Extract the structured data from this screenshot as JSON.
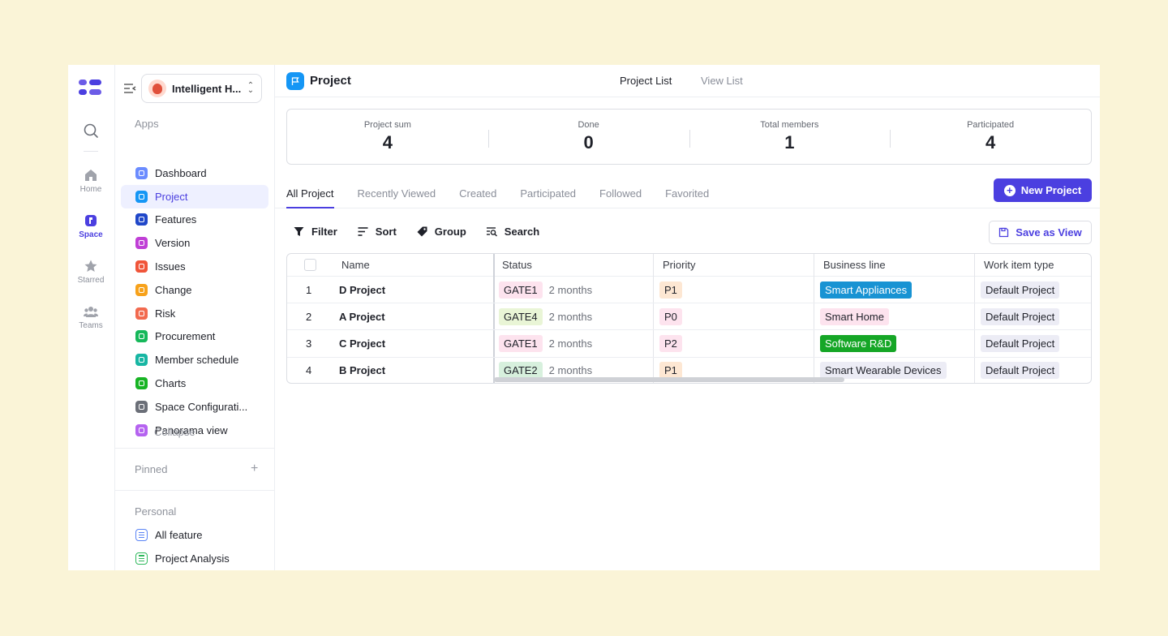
{
  "rail": {
    "items": [
      {
        "label": "Home",
        "icon": "home-icon"
      },
      {
        "label": "Space",
        "icon": "space-icon",
        "active": true
      },
      {
        "label": "Starred",
        "icon": "star-icon"
      },
      {
        "label": "Teams",
        "icon": "teams-icon"
      }
    ]
  },
  "sidebar": {
    "workspace": "Intelligent H...",
    "apps_label": "Apps",
    "apps": [
      {
        "label": "Dashboard",
        "color": "#6b8cff"
      },
      {
        "label": "Project",
        "color": "#1596f5",
        "active": true
      },
      {
        "label": "Features",
        "color": "#2047c9"
      },
      {
        "label": "Version",
        "color": "#c03fd6"
      },
      {
        "label": "Issues",
        "color": "#f0553a"
      },
      {
        "label": "Change",
        "color": "#f7a21b"
      },
      {
        "label": "Risk",
        "color": "#f26a4f"
      },
      {
        "label": "Procurement",
        "color": "#16b85a"
      },
      {
        "label": "Member schedule",
        "color": "#17b6a3"
      },
      {
        "label": "Charts",
        "color": "#18b424"
      },
      {
        "label": "Space Configurati...",
        "color": "#6b6f78"
      },
      {
        "label": "Panorama view",
        "color": "#b563f0"
      }
    ],
    "collapse": "Collapse",
    "pinned_label": "Pinned",
    "pinned_add": "+",
    "personal_label": "Personal",
    "personal": [
      {
        "label": "All feature",
        "color": "#5a84f5"
      },
      {
        "label": "Project Analysis",
        "color": "#2fb85c"
      }
    ]
  },
  "header": {
    "title": "Project",
    "tabs": [
      "Project List",
      "View List"
    ]
  },
  "stats": [
    {
      "label": "Project sum",
      "value": "4"
    },
    {
      "label": "Done",
      "value": "0"
    },
    {
      "label": "Total members",
      "value": "1"
    },
    {
      "label": "Participated",
      "value": "4"
    }
  ],
  "tabs": [
    "All Project",
    "Recently Viewed",
    "Created",
    "Participated",
    "Followed",
    "Favorited"
  ],
  "new_project": "New Project",
  "toolbar": {
    "filter": "Filter",
    "sort": "Sort",
    "group": "Group",
    "search": "Search",
    "save_view": "Save as View"
  },
  "table": {
    "columns": [
      "Name",
      "Status",
      "Priority",
      "Business line",
      "Work item type"
    ],
    "rows": [
      {
        "num": "1",
        "name": "D Project",
        "status": "GATE1",
        "duration": "2 months",
        "priority": "P1",
        "business": "Smart Appliances",
        "type": "Default Project"
      },
      {
        "num": "2",
        "name": "A Project",
        "status": "GATE4",
        "duration": "2 months",
        "priority": "P0",
        "business": "Smart Home",
        "type": "Default Project"
      },
      {
        "num": "3",
        "name": "C Project",
        "status": "GATE1",
        "duration": "2 months",
        "priority": "P2",
        "business": "Software R&D",
        "type": "Default Project"
      },
      {
        "num": "4",
        "name": "B Project",
        "status": "GATE2",
        "duration": "2 months",
        "priority": "P1",
        "business": "Smart Wearable Devices",
        "type": "Default Project"
      }
    ]
  },
  "colors": {
    "accent": "#4b3fe0",
    "status_gate1_bg": "#fde3ee",
    "status_gate4_bg": "#e9f5d6",
    "status_gate2_bg": "#d7f0dd",
    "priority_p1_bg": "#fde7d3",
    "priority_p0_bg": "#fde3ee",
    "priority_p2_bg": "#fde3ee",
    "business_appliances_bg": "#1893d3",
    "business_home_bg": "#fde3ee",
    "business_software_bg": "#15a626",
    "business_wearable_bg": "#ececf5",
    "type_bg": "#ececf5"
  }
}
